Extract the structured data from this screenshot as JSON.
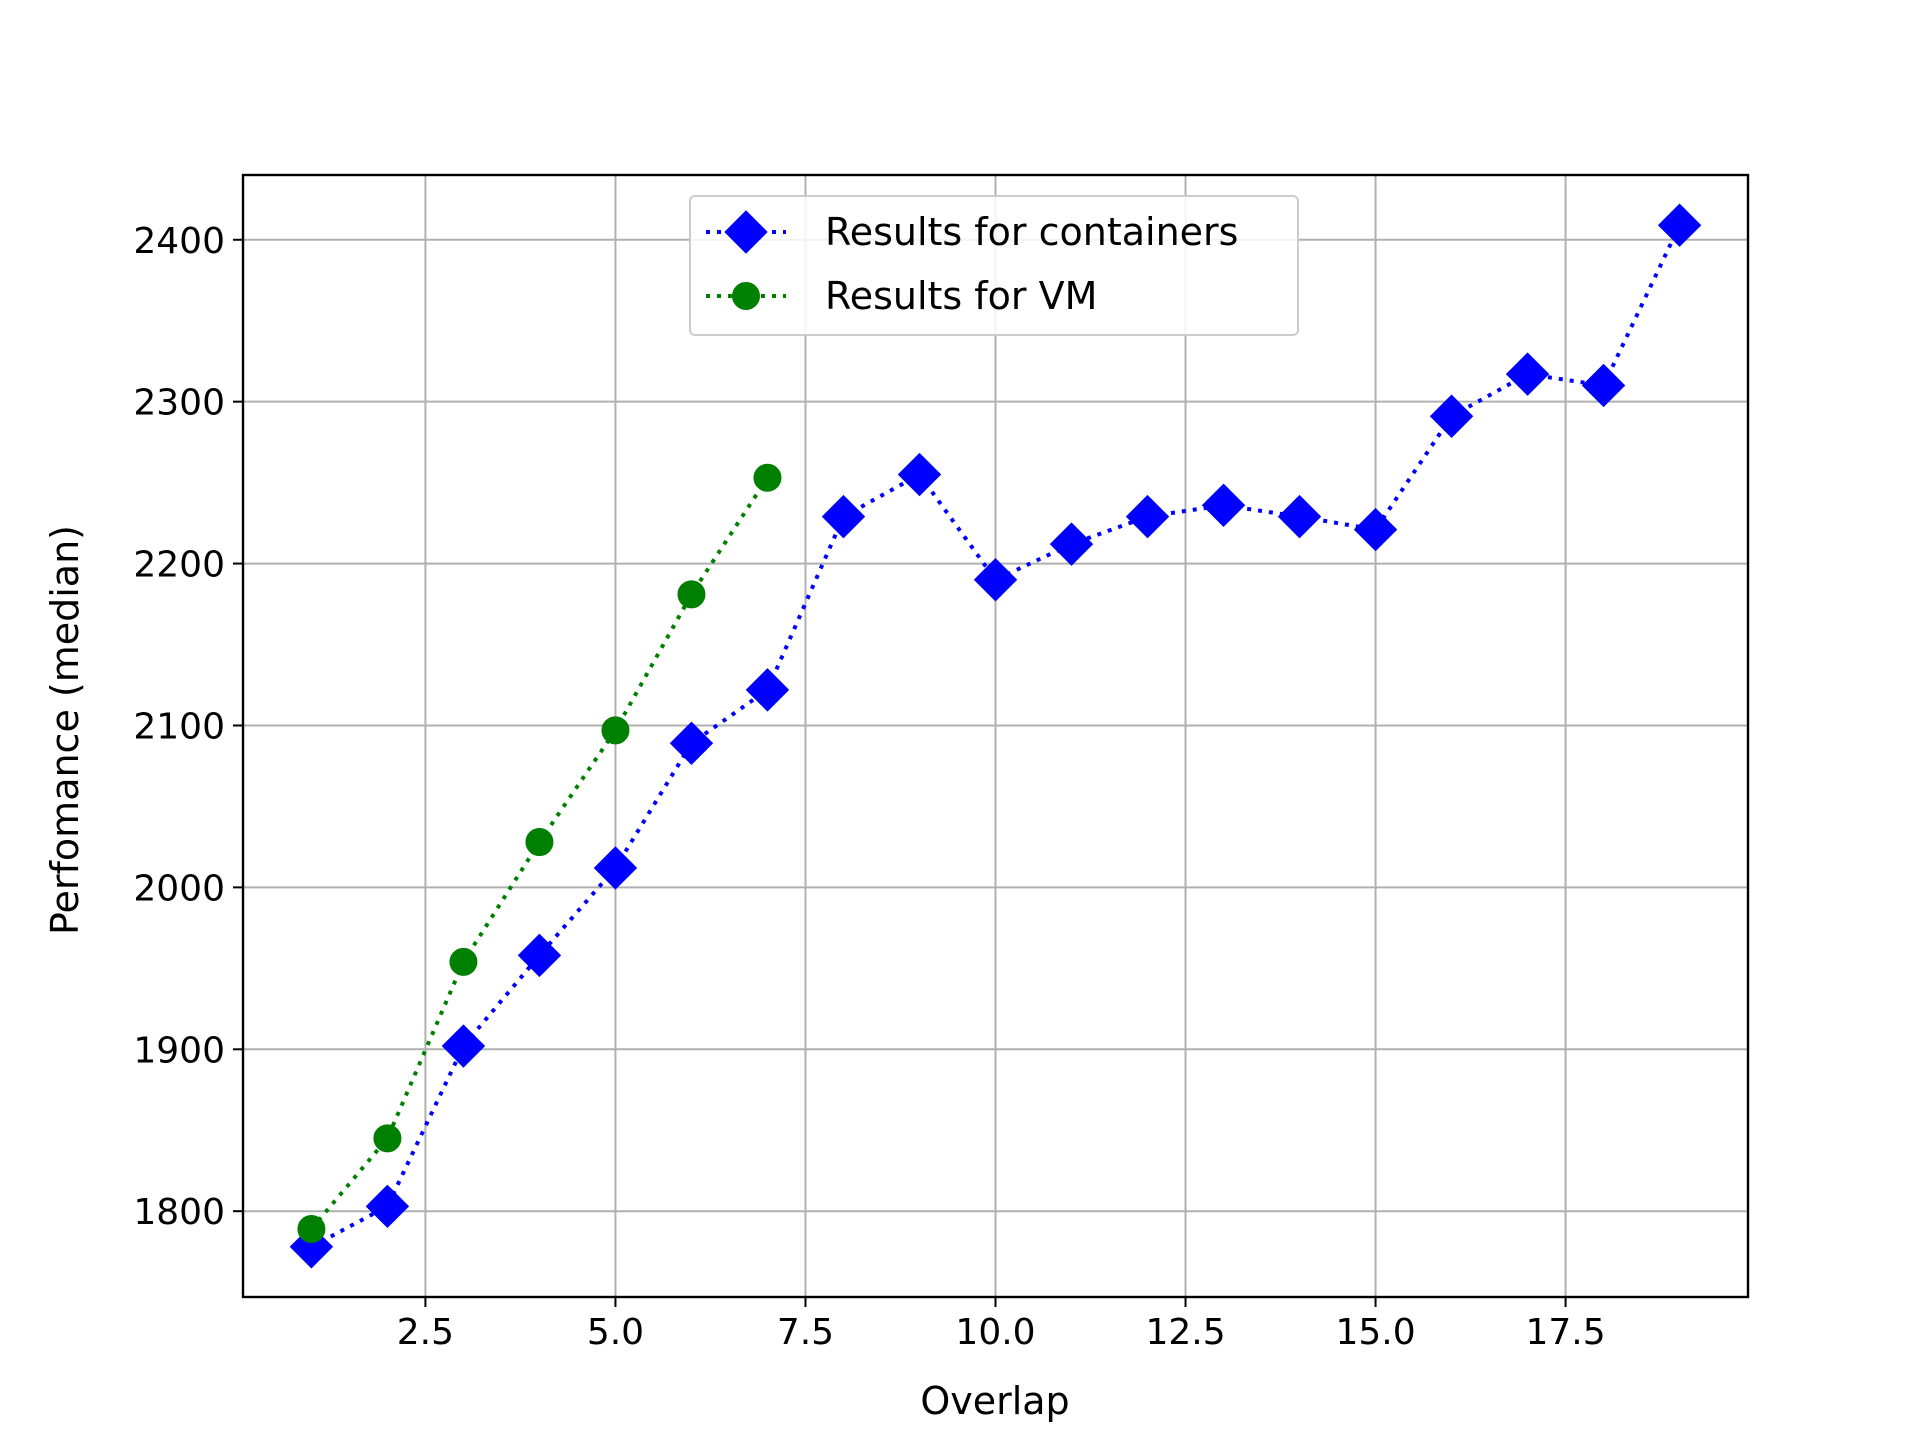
{
  "chart_data": {
    "type": "line",
    "title": "",
    "xlabel": "Overlap",
    "ylabel": "Perfomance (median)",
    "xlim": [
      0.1,
      19.9
    ],
    "ylim": [
      1747,
      2440
    ],
    "x_ticks": [
      2.5,
      5.0,
      7.5,
      10.0,
      12.5,
      15.0,
      17.5
    ],
    "x_tick_labels": [
      "2.5",
      "5.0",
      "7.5",
      "10.0",
      "12.5",
      "15.0",
      "17.5"
    ],
    "y_ticks": [
      1800,
      1900,
      2000,
      2100,
      2200,
      2300,
      2400
    ],
    "y_tick_labels": [
      "1800",
      "1900",
      "2000",
      "2100",
      "2200",
      "2300",
      "2400"
    ],
    "grid": true,
    "legend_position": "upper center",
    "series": [
      {
        "name": "Results for containers",
        "color": "#0000ff",
        "marker": "diamond",
        "linestyle": "dotted",
        "x": [
          1,
          2,
          3,
          4,
          5,
          6,
          7,
          8,
          9,
          10,
          11,
          12,
          13,
          14,
          15,
          16,
          17,
          18,
          19
        ],
        "y": [
          1778,
          1803,
          1902,
          1958,
          2012,
          2089,
          2122,
          2229,
          2255,
          2190,
          2212,
          2229,
          2236,
          2229,
          2221,
          2291,
          2317,
          2310,
          2409
        ]
      },
      {
        "name": "Results for VM",
        "color": "#008000",
        "marker": "circle",
        "linestyle": "dotted",
        "x": [
          1,
          2,
          3,
          4,
          5,
          6,
          7
        ],
        "y": [
          1789,
          1845,
          1954,
          2028,
          2097,
          2181,
          2253
        ]
      }
    ]
  }
}
